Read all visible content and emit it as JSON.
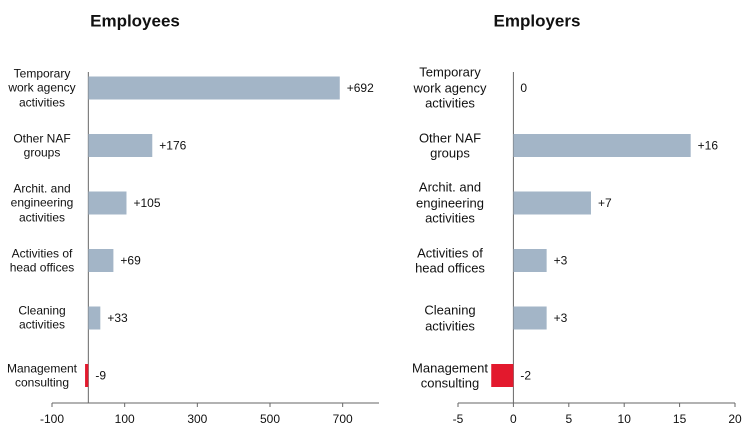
{
  "chart_data": [
    {
      "type": "bar",
      "orientation": "horizontal",
      "title": "Employees",
      "categories": [
        "Temporary\nwork agency\nactivities",
        "Other NAF\ngroups",
        "Archit. and\nengineering\nactivities",
        "Activities of\nhead offices",
        "Cleaning\nactivities",
        "Management\nconsulting"
      ],
      "values": [
        692,
        176,
        105,
        69,
        33,
        -9
      ],
      "value_labels": [
        "+692",
        "+176",
        "+105",
        "+69",
        "+33",
        "-9"
      ],
      "xlim": [
        -100,
        800
      ],
      "xticks": [
        -100,
        100,
        300,
        500,
        700
      ],
      "color": "#a3b5c7",
      "negative_color": "#e3192d"
    },
    {
      "type": "bar",
      "orientation": "horizontal",
      "title": "Employers",
      "categories": [
        "Temporary\nwork agency\nactivities",
        "Other NAF\ngroups",
        "Archit. and\nengineering\nactivities",
        "Activities of\nhead offices",
        "Cleaning\nactivities",
        "Management\nconsulting"
      ],
      "values": [
        0,
        16,
        7,
        3,
        3,
        -2
      ],
      "value_labels": [
        "0",
        "+16",
        "+7",
        "+3",
        "+3",
        "-2"
      ],
      "xlim": [
        -5,
        20
      ],
      "xticks": [
        -5,
        0,
        5,
        10,
        15,
        20
      ],
      "color": "#a3b5c7",
      "negative_color": "#e3192d"
    }
  ]
}
